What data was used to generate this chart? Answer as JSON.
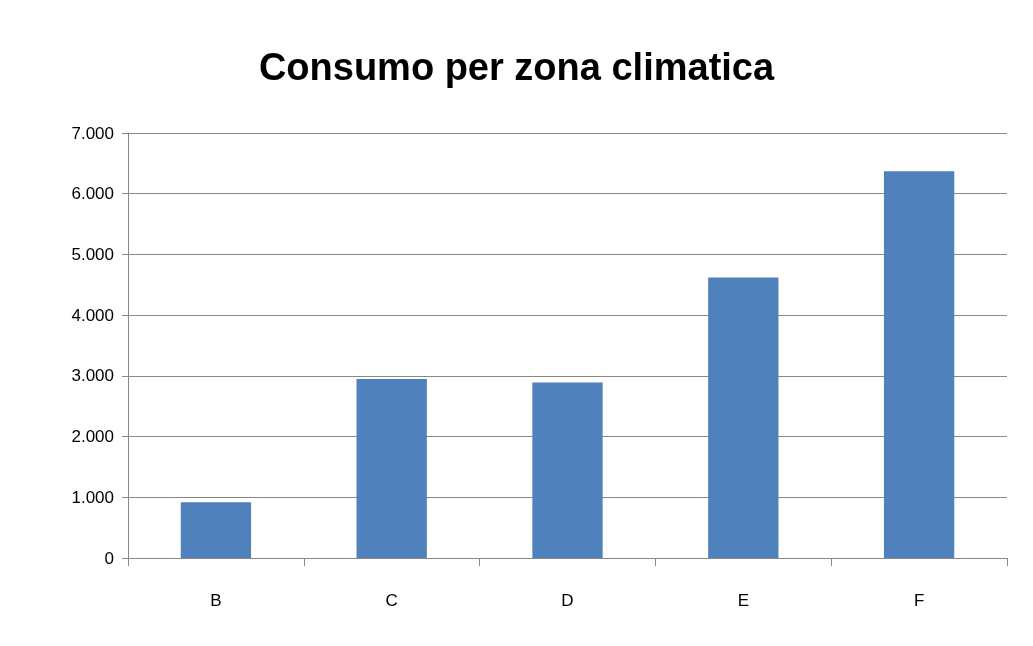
{
  "chart_data": {
    "type": "bar",
    "title": "Consumo per zona climatica",
    "categories": [
      "B",
      "C",
      "D",
      "E",
      "F"
    ],
    "values": [
      920,
      2950,
      2890,
      4620,
      6370
    ],
    "color": "#4f81bd",
    "ylim": [
      0,
      7000
    ],
    "yticks": [
      0,
      {
        "value": 1000,
        "label": "1.000"
      },
      {
        "value": 2000,
        "label": "2.000"
      },
      {
        "value": 3000,
        "label": "3.000"
      },
      {
        "value": 4000,
        "label": "4.000"
      },
      {
        "value": 5000,
        "label": "5.000"
      },
      {
        "value": 6000,
        "label": "6.000"
      },
      {
        "value": 7000,
        "label": "7.000"
      }
    ],
    "grid": "y"
  }
}
